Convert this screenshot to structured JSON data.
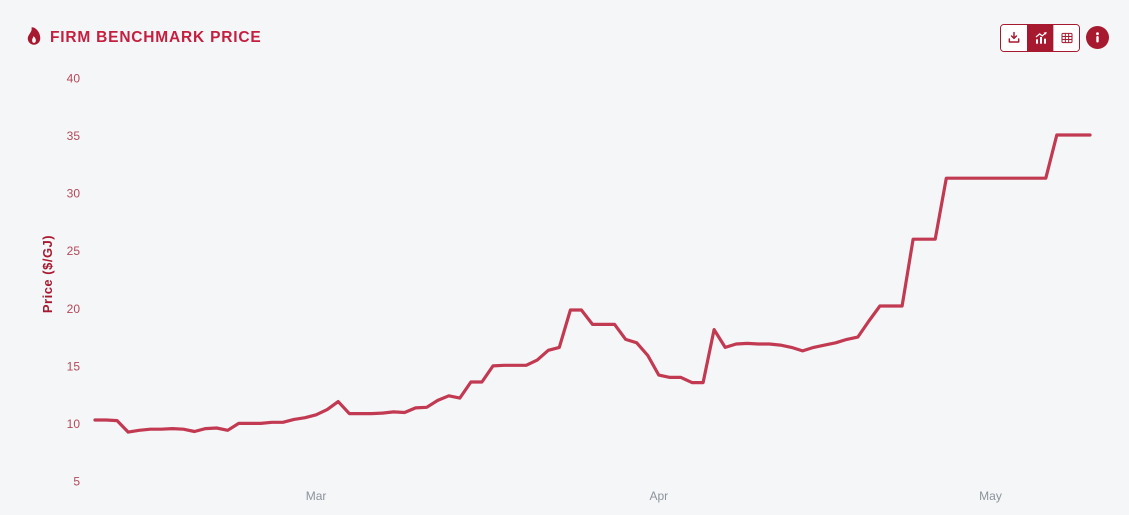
{
  "header": {
    "title": "FIRM BENCHMARK PRICE",
    "title_icon": "flame-icon",
    "toolbar": {
      "buttons": [
        {
          "icon": "download-icon",
          "active": false
        },
        {
          "icon": "bar-chart-icon",
          "active": true
        },
        {
          "icon": "table-icon",
          "active": false
        }
      ],
      "info_button_icon": "info-icon"
    }
  },
  "colors": {
    "accent": "#a6192e",
    "title_text": "#c41f3f",
    "line": "#c23a52",
    "y_tick_text": "#b2495a",
    "x_tick_text": "#8d939b",
    "background": "#f5f6f8",
    "button_background": "#ffffff"
  },
  "chart_data": {
    "type": "line",
    "title": "FIRM BENCHMARK PRICE",
    "ylabel": "Price ($/GJ)",
    "xlabel": "",
    "ylim": [
      5,
      40
    ],
    "ytick_step": 5,
    "yticks": [
      5,
      10,
      15,
      20,
      25,
      30,
      35,
      40
    ],
    "grid": false,
    "legend": false,
    "frequency": "daily",
    "x_start": "Feb 9",
    "x_end": "May 10",
    "x_ticks": [
      {
        "label": "Mar",
        "index": 20
      },
      {
        "label": "Apr",
        "index": 51
      },
      {
        "label": "May",
        "index": 81
      }
    ],
    "series_name": "Firm Benchmark Price",
    "values": [
      10.3,
      10.3,
      10.25,
      9.25,
      9.4,
      9.5,
      9.5,
      9.55,
      9.5,
      9.3,
      9.55,
      9.6,
      9.4,
      10.0,
      10.0,
      10.0,
      10.1,
      10.1,
      10.35,
      10.5,
      10.75,
      11.2,
      11.9,
      10.85,
      10.85,
      10.85,
      10.9,
      11.0,
      10.95,
      11.35,
      11.4,
      12.0,
      12.4,
      12.2,
      13.6,
      13.6,
      15.0,
      15.05,
      15.05,
      15.05,
      15.5,
      16.35,
      16.6,
      19.85,
      19.85,
      18.6,
      18.6,
      18.6,
      17.3,
      17.0,
      15.9,
      14.2,
      14.0,
      14.0,
      13.55,
      13.55,
      18.15,
      16.6,
      16.9,
      16.95,
      16.9,
      16.9,
      16.8,
      16.6,
      16.3,
      16.6,
      16.8,
      17.0,
      17.3,
      17.5,
      18.9,
      20.2,
      20.2,
      20.2,
      26.0,
      26.0,
      26.0,
      31.3,
      31.3,
      31.3,
      31.3,
      31.3,
      31.3,
      31.3,
      31.3,
      31.3,
      31.3,
      35.05,
      35.05,
      35.05,
      35.05
    ]
  }
}
